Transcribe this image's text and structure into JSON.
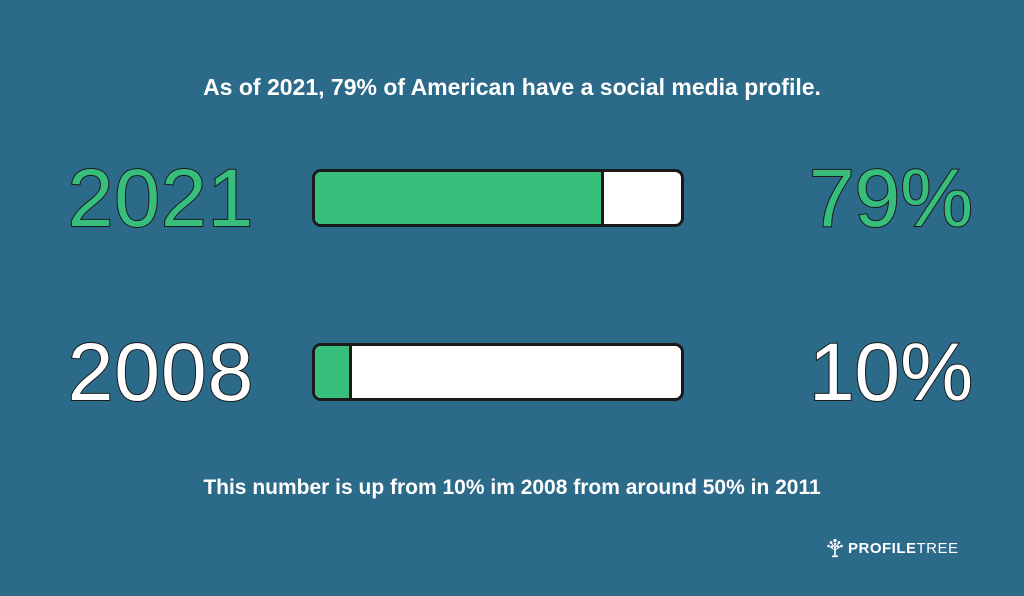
{
  "headline": "As of 2021, 79% of American have a social media profile.",
  "footnote": "This number is up from 10% im 2008 from around 50% in 2011",
  "logo": {
    "text_bold": "PROFILE",
    "text_light": "TREE",
    "icon": "tree-icon"
  },
  "colors": {
    "background": "#2c6a8a",
    "fill": "#38be7c",
    "track": "#ffffff",
    "outline": "#1a1a1a",
    "highlight_text": "#38be7c",
    "plain_text": "#ffffff"
  },
  "chart_data": {
    "type": "bar",
    "orientation": "horizontal",
    "categories": [
      "2021",
      "2008"
    ],
    "values": [
      79,
      10
    ],
    "value_labels": [
      "79%",
      "10%"
    ],
    "xlim": [
      0,
      100
    ],
    "unit": "%",
    "title": "",
    "xlabel": "",
    "ylabel": ""
  }
}
